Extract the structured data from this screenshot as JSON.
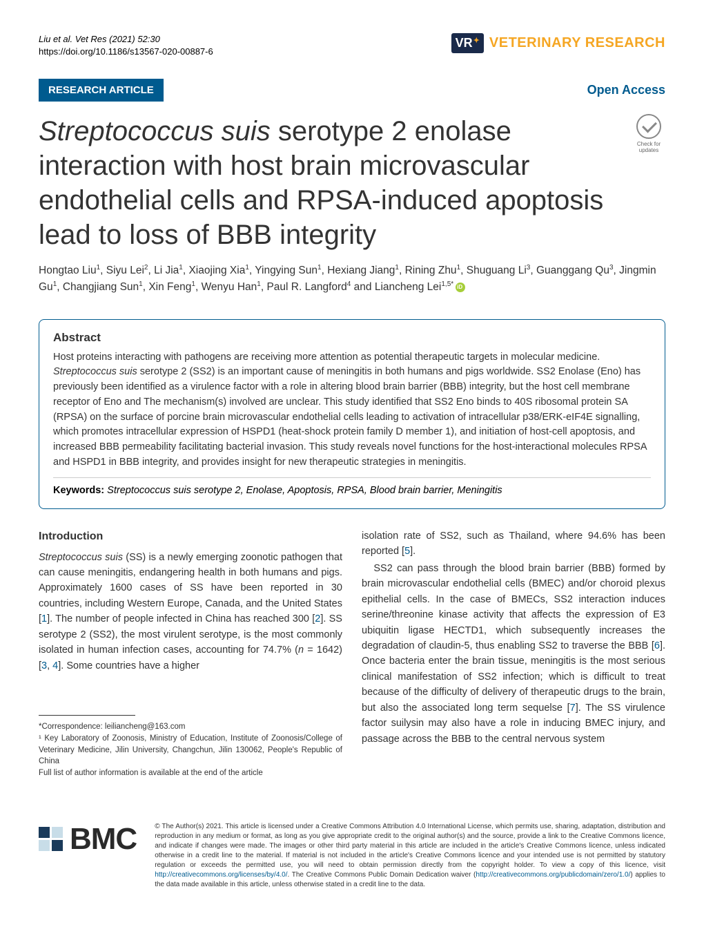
{
  "citation": {
    "line1_authors": "Liu ",
    "line1_etal": "et al. Vet Res",
    "line1_rest": "          (2021) 52:30",
    "doi": "https://doi.org/10.1186/s13567-020-00887-6"
  },
  "journal": {
    "badge": "VR",
    "name": "VETERINARY RESEARCH"
  },
  "labels": {
    "article_type": "RESEARCH ARTICLE",
    "open_access": "Open Access",
    "check_updates": "Check for updates"
  },
  "title": {
    "italic_part": "Streptococcus suis",
    "rest": " serotype 2 enolase interaction with host brain microvascular endothelial cells and RPSA-induced apoptosis lead to loss of BBB integrity"
  },
  "authors_html": "Hongtao Liu<sup>1</sup>, Siyu Lei<sup>2</sup>, Li Jia<sup>1</sup>, Xiaojing Xia<sup>1</sup>, Yingying Sun<sup>1</sup>, Hexiang Jiang<sup>1</sup>, Rining Zhu<sup>1</sup>, Shuguang Li<sup>3</sup>, Guanggang Qu<sup>3</sup>, Jingmin Gu<sup>1</sup>, Changjiang Sun<sup>1</sup>, Xin Feng<sup>1</sup>, Wenyu Han<sup>1</sup>, Paul R. Langford<sup>4</sup> and Liancheng Lei<sup>1,5*</sup>",
  "abstract": {
    "heading": "Abstract",
    "text_pre": "Host proteins interacting with pathogens are receiving more attention as potential therapeutic targets in molecular medicine. ",
    "text_italic1": "Streptococcus suis",
    "text_post": " serotype 2 (SS2) is an important cause of meningitis in both humans and pigs worldwide. SS2 Enolase (Eno) has previously been identified as a virulence factor with a role in altering blood brain barrier (BBB) integrity, but the host cell membrane receptor of Eno and The mechanism(s) involved are unclear. This study identified that SS2 Eno binds to 40S ribosomal protein SA (RPSA) on the surface of porcine brain microvascular endothelial cells leading to activation of intracellular p38/ERK-eIF4E signalling, which promotes intracellular expression of HSPD1 (heat-shock protein family D member 1), and initiation of host-cell apoptosis, and increased BBB permeability facilitating bacterial invasion. This study reveals novel functions for the host-interactional molecules RPSA and HSPD1 in BBB integrity, and provides insight for new therapeutic strategies in meningitis.",
    "keywords_label": "Keywords:",
    "keywords_italic": "Streptococcus suis",
    "keywords_rest": " serotype 2, Enolase, Apoptosis, RPSA, Blood brain barrier, Meningitis"
  },
  "intro": {
    "heading": "Introduction",
    "col1_italic": "Streptococcus suis",
    "col1_p1": " (SS) is a newly emerging zoonotic pathogen that can cause meningitis, endangering health in both humans and pigs. Approximately 1600 cases of SS have been reported in 30 countries, including Western Europe, Canada, and the United States [",
    "ref1": "1",
    "col1_p2": "]. The number of people infected in China has reached 300 [",
    "ref2": "2",
    "col1_p3": "]. SS serotype 2 (SS2), the most virulent serotype, is the most commonly isolated in human infection cases, accounting for 74.7% (",
    "col1_n": "n",
    "col1_p4": " = 1642) [",
    "ref3": "3",
    "ref_comma": ", ",
    "ref4": "4",
    "col1_p5": "]. Some countries have a higher",
    "col2_p1a": "isolation rate of SS2, such as Thailand, where 94.6% has been reported [",
    "ref5": "5",
    "col2_p1b": "].",
    "col2_p2a": "SS2 can pass through the blood brain barrier (BBB) formed by brain microvascular endothelial cells (BMEC) and/or choroid plexus epithelial cells. In the case of BMECs, SS2 interaction induces serine/threonine kinase activity that affects the expression of E3 ubiquitin ligase HECTD1, which subsequently increases the degradation of claudin-5, thus enabling SS2 to traverse the BBB [",
    "ref6": "6",
    "col2_p2b": "]. Once bacteria enter the brain tissue, meningitis is the most serious clinical manifestation of SS2 infection; which is difficult to treat because of the difficulty of delivery of therapeutic drugs to the brain, but also the associated long term sequelse [",
    "ref7": "7",
    "col2_p2c": "]. The SS virulence factor suilysin may also have a role in inducing BMEC injury, and passage across the BBB to the central nervous system"
  },
  "footnotes": {
    "correspondence": "*Correspondence:  leiliancheng@163.com",
    "affil1": "¹ Key Laboratory of Zoonosis, Ministry of Education, Institute of Zoonosis/College of Veterinary Medicine, Jilin University, Changchun, Jilin 130062, People's Republic of China",
    "full_list": "Full list of author information is available at the end of the article"
  },
  "bmc": "BMC",
  "license": {
    "text1": "© The Author(s) 2021. This article is licensed under a Creative Commons Attribution 4.0 International License, which permits use, sharing, adaptation, distribution and reproduction in any medium or format, as long as you give appropriate credit to the original author(s) and the source, provide a link to the Creative Commons licence, and indicate if changes were made. The images or other third party material in this article are included in the article's Creative Commons licence, unless indicated otherwise in a credit line to the material. If material is not included in the article's Creative Commons licence and your intended use is not permitted by statutory regulation or exceeds the permitted use, you will need to obtain permission directly from the copyright holder. To view a copy of this licence, visit ",
    "link1": "http://creativecommons.org/licenses/by/4.0/",
    "text2": ". The Creative Commons Public Domain Dedication waiver (",
    "link2": "http://creativecommons.org/publicdomain/zero/1.0/",
    "text3": ") applies to the data made available in this article, unless otherwise stated in a credit line to the data."
  },
  "colors": {
    "brand_blue": "#005b8f",
    "brand_orange": "#f5a623",
    "dark_navy": "#1a2a4a",
    "text": "#333333"
  }
}
